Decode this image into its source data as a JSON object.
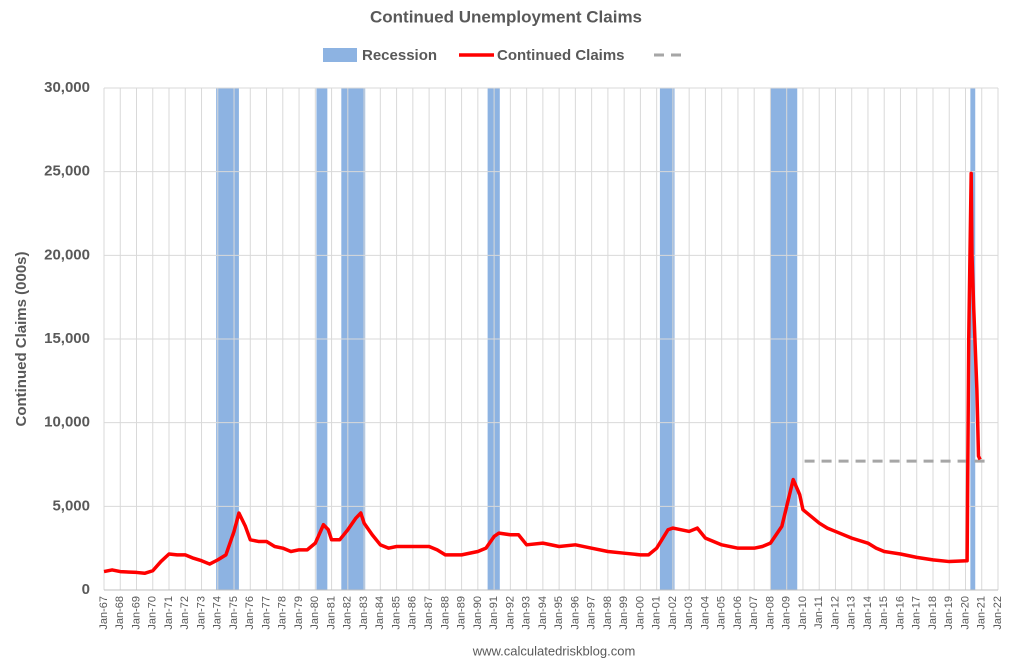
{
  "chart_data": {
    "type": "line",
    "title": "Continued Unemployment Claims",
    "y_label": "Continued Claims (000s)",
    "footer": "www.calculatedriskblog.com",
    "xlim": [
      1967,
      2022
    ],
    "ylim": [
      0,
      30000
    ],
    "yticks": [
      0,
      {
        "value": 5000,
        "label": "5,000"
      },
      {
        "value": 10000,
        "label": "10,000"
      },
      {
        "value": 15000,
        "label": "15,000"
      },
      {
        "value": 20000,
        "label": "20,000"
      },
      {
        "value": 25000,
        "label": "25,000"
      },
      {
        "value": 30000,
        "label": "30,000"
      }
    ],
    "xticks": [
      {
        "value": 1967,
        "label": "Jan-67"
      },
      {
        "value": 1968,
        "label": "Jan-68"
      },
      {
        "value": 1969,
        "label": "Jan-69"
      },
      {
        "value": 1970,
        "label": "Jan-70"
      },
      {
        "value": 1971,
        "label": "Jan-71"
      },
      {
        "value": 1972,
        "label": "Jan-72"
      },
      {
        "value": 1973,
        "label": "Jan-73"
      },
      {
        "value": 1974,
        "label": "Jan-74"
      },
      {
        "value": 1975,
        "label": "Jan-75"
      },
      {
        "value": 1976,
        "label": "Jan-76"
      },
      {
        "value": 1977,
        "label": "Jan-77"
      },
      {
        "value": 1978,
        "label": "Jan-78"
      },
      {
        "value": 1979,
        "label": "Jan-79"
      },
      {
        "value": 1980,
        "label": "Jan-80"
      },
      {
        "value": 1981,
        "label": "Jan-81"
      },
      {
        "value": 1982,
        "label": "Jan-82"
      },
      {
        "value": 1983,
        "label": "Jan-83"
      },
      {
        "value": 1984,
        "label": "Jan-84"
      },
      {
        "value": 1985,
        "label": "Jan-85"
      },
      {
        "value": 1986,
        "label": "Jan-86"
      },
      {
        "value": 1987,
        "label": "Jan-87"
      },
      {
        "value": 1988,
        "label": "Jan-88"
      },
      {
        "value": 1989,
        "label": "Jan-89"
      },
      {
        "value": 1990,
        "label": "Jan-90"
      },
      {
        "value": 1991,
        "label": "Jan-91"
      },
      {
        "value": 1992,
        "label": "Jan-92"
      },
      {
        "value": 1993,
        "label": "Jan-93"
      },
      {
        "value": 1994,
        "label": "Jan-94"
      },
      {
        "value": 1995,
        "label": "Jan-95"
      },
      {
        "value": 1996,
        "label": "Jan-96"
      },
      {
        "value": 1997,
        "label": "Jan-97"
      },
      {
        "value": 1998,
        "label": "Jan-98"
      },
      {
        "value": 1999,
        "label": "Jan-99"
      },
      {
        "value": 2000,
        "label": "Jan-00"
      },
      {
        "value": 2001,
        "label": "Jan-01"
      },
      {
        "value": 2002,
        "label": "Jan-02"
      },
      {
        "value": 2003,
        "label": "Jan-03"
      },
      {
        "value": 2004,
        "label": "Jan-04"
      },
      {
        "value": 2005,
        "label": "Jan-05"
      },
      {
        "value": 2006,
        "label": "Jan-06"
      },
      {
        "value": 2007,
        "label": "Jan-07"
      },
      {
        "value": 2008,
        "label": "Jan-08"
      },
      {
        "value": 2009,
        "label": "Jan-09"
      },
      {
        "value": 2010,
        "label": "Jan-10"
      },
      {
        "value": 2011,
        "label": "Jan-11"
      },
      {
        "value": 2012,
        "label": "Jan-12"
      },
      {
        "value": 2013,
        "label": "Jan-13"
      },
      {
        "value": 2014,
        "label": "Jan-14"
      },
      {
        "value": 2015,
        "label": "Jan-15"
      },
      {
        "value": 2016,
        "label": "Jan-16"
      },
      {
        "value": 2017,
        "label": "Jan-17"
      },
      {
        "value": 2018,
        "label": "Jan-18"
      },
      {
        "value": 2019,
        "label": "Jan-19"
      },
      {
        "value": 2020,
        "label": "Jan-20"
      },
      {
        "value": 2021,
        "label": "Jan-21"
      },
      {
        "value": 2022,
        "label": "Jan-22"
      }
    ],
    "grid": true,
    "recessions": {
      "name": "Recession",
      "color": "#8db3e2",
      "ranges": [
        [
          1973.9,
          1975.3
        ],
        [
          1980.07,
          1980.74
        ],
        [
          1981.6,
          1983.07
        ],
        [
          1990.6,
          1991.35
        ],
        [
          2001.2,
          2002.1
        ],
        [
          2008.0,
          2009.65
        ],
        [
          2020.3,
          2020.6
        ]
      ]
    },
    "series": [
      {
        "name": "Continued Claims",
        "color": "#ff0000",
        "x": [
          1967.0,
          1967.5,
          1968,
          1969,
          1969.5,
          1970,
          1970.5,
          1971,
          1971.5,
          1972,
          1972.5,
          1973,
          1973.5,
          1974,
          1974.5,
          1975,
          1975.3,
          1975.7,
          1976,
          1976.5,
          1977,
          1977.5,
          1978,
          1978.5,
          1979,
          1979.5,
          1980,
          1980.5,
          1980.8,
          1981,
          1981.5,
          1982,
          1982.5,
          1982.8,
          1983,
          1983.5,
          1984,
          1984.5,
          1985,
          1986,
          1987,
          1987.5,
          1988,
          1989,
          1990,
          1990.5,
          1991,
          1991.3,
          1992,
          1992.5,
          1993,
          1994,
          1995,
          1996,
          1997,
          1998,
          1999,
          2000,
          2000.5,
          2001,
          2001.7,
          2002,
          2003,
          2003.5,
          2004,
          2005,
          2006,
          2007,
          2007.5,
          2008,
          2008.7,
          2009,
          2009.4,
          2009.8,
          2010,
          2011,
          2011.5,
          2012,
          2013,
          2014,
          2014.5,
          2015,
          2016,
          2017,
          2018,
          2019,
          2020.1,
          2020.2,
          2020.35,
          2020.4,
          2020.5,
          2020.7,
          2020.8,
          2020.9
        ],
        "values": [
          1100,
          1200,
          1100,
          1050,
          1000,
          1150,
          1700,
          2150,
          2100,
          2100,
          1900,
          1750,
          1550,
          1800,
          2100,
          3500,
          4600,
          3800,
          3000,
          2900,
          2900,
          2600,
          2500,
          2300,
          2400,
          2400,
          2800,
          3900,
          3600,
          3000,
          3000,
          3600,
          4300,
          4600,
          4000,
          3300,
          2700,
          2500,
          2600,
          2600,
          2600,
          2400,
          2100,
          2100,
          2300,
          2500,
          3200,
          3400,
          3300,
          3300,
          2700,
          2800,
          2600,
          2700,
          2500,
          2300,
          2200,
          2100,
          2100,
          2500,
          3600,
          3700,
          3500,
          3700,
          3100,
          2700,
          2500,
          2500,
          2600,
          2800,
          3800,
          5000,
          6600,
          5700,
          4800,
          4000,
          3700,
          3500,
          3100,
          2800,
          2500,
          2300,
          2150,
          1950,
          1800,
          1700,
          1750,
          15000,
          24900,
          20000,
          17000,
          12000,
          8000,
          7800
        ]
      }
    ],
    "reference_line": {
      "value": 7700,
      "xlim": [
        2010.1,
        2021.6
      ],
      "color": "#a6a6a6"
    }
  }
}
